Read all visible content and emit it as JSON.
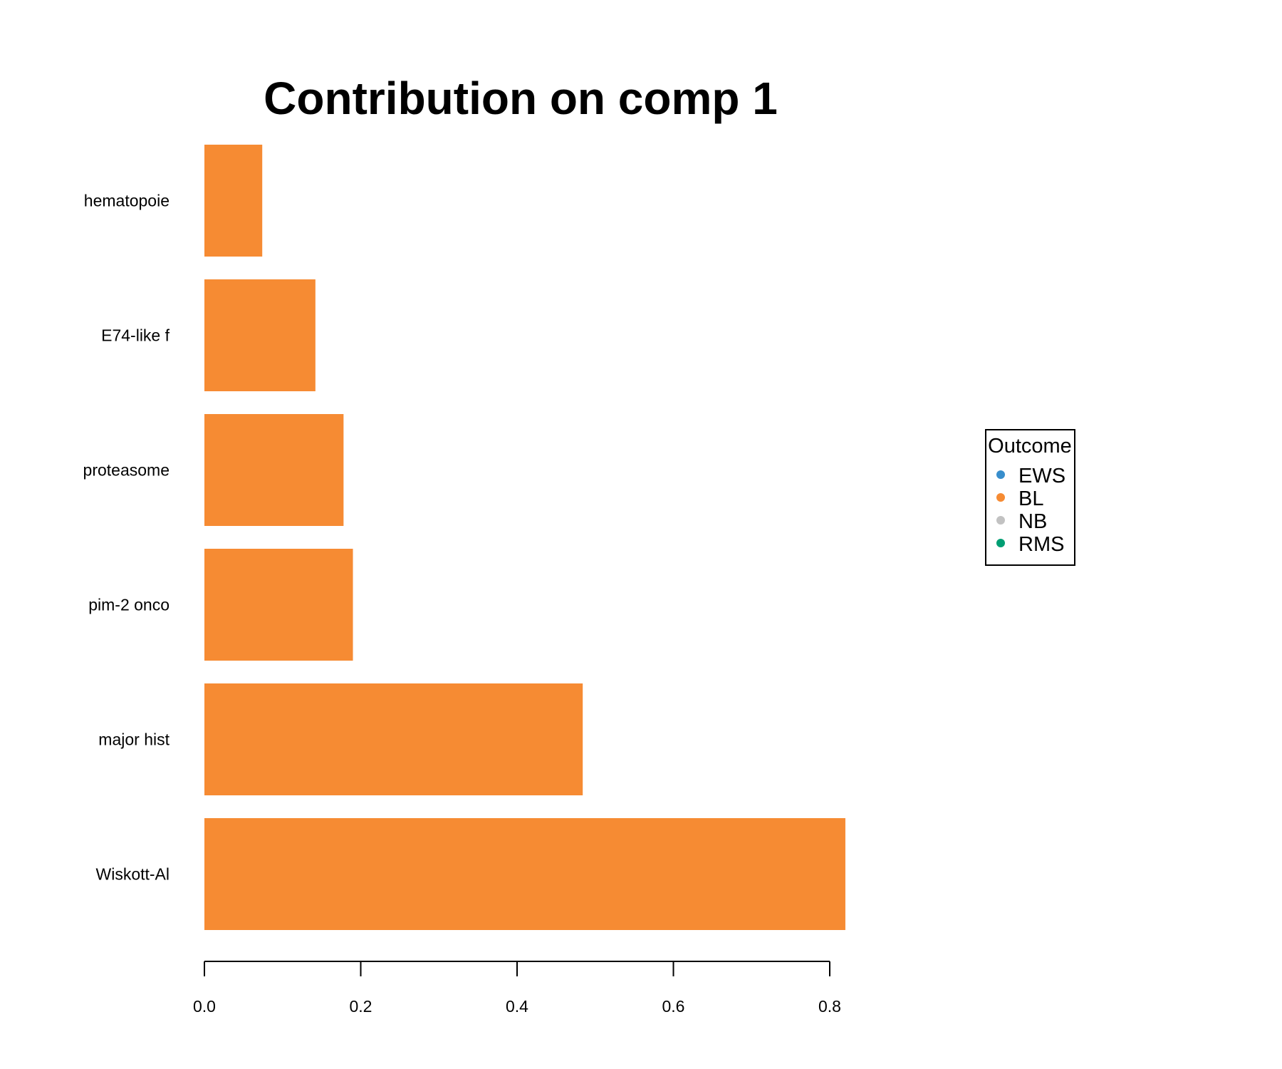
{
  "chart_data": {
    "type": "bar",
    "orientation": "horizontal",
    "title": "Contribution on comp 1",
    "xlabel": "",
    "ylabel": "",
    "categories": [
      "Wiskott-Al",
      "major hist",
      "pim-2 onco",
      "proteasome",
      "E74-like f",
      "hematopoie"
    ],
    "values": [
      0.82,
      0.484,
      0.19,
      0.178,
      0.142,
      0.074
    ],
    "bar_colors": [
      "#F68B33",
      "#F68B33",
      "#F68B33",
      "#F68B33",
      "#F68B33",
      "#F68B33"
    ],
    "xlim": [
      0,
      0.8
    ],
    "xticks": [
      0,
      0.2,
      0.4,
      0.6,
      0.8
    ],
    "xtick_labels": [
      "0.0",
      "0.2",
      "0.4",
      "0.6",
      "0.8"
    ],
    "grid": false,
    "legend": {
      "title": "Outcome",
      "placement": "right",
      "entries": [
        {
          "label": "EWS",
          "color": "#388ECC"
        },
        {
          "label": "BL",
          "color": "#F68B33"
        },
        {
          "label": "NB",
          "color": "#C2C2C2"
        },
        {
          "label": "RMS",
          "color": "#009E73"
        }
      ]
    }
  }
}
